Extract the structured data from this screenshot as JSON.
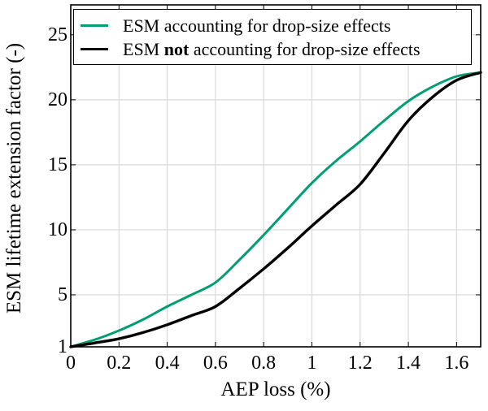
{
  "chart_data": {
    "type": "line",
    "title": "",
    "xlabel": "AEP loss (%)",
    "ylabel": "ESM lifetime extension factor (-)",
    "xlim": [
      0,
      1.7
    ],
    "ylim": [
      1,
      27.3
    ],
    "x_tick_labels": [
      "0",
      "0.2",
      "0.4",
      "0.6",
      "0.8",
      "1",
      "1.2",
      "1.4",
      "1.6"
    ],
    "x_tick_values": [
      0,
      0.2,
      0.4,
      0.6,
      0.8,
      1,
      1.2,
      1.4,
      1.6
    ],
    "y_tick_labels": [
      "1",
      "5",
      "10",
      "15",
      "20",
      "25"
    ],
    "y_tick_values": [
      1,
      5,
      10,
      15,
      20,
      25
    ],
    "grid": "major",
    "legend_position": "top-inside",
    "x": [
      0,
      0.1,
      0.2,
      0.3,
      0.4,
      0.5,
      0.6,
      0.7,
      0.8,
      0.9,
      1,
      1.1,
      1.2,
      1.3,
      1.4,
      1.5,
      1.6,
      1.7
    ],
    "series": [
      {
        "name": "ESM accounting for drop-size effects",
        "color": "#009e73",
        "values": [
          1,
          1.55,
          2.25,
          3.1,
          4.1,
          5,
          5.95,
          7.7,
          9.6,
          11.6,
          13.6,
          15.3,
          16.8,
          18.4,
          19.9,
          21,
          21.8,
          22.1
        ]
      },
      {
        "name": "ESM not accounting for drop-size effects",
        "color": "#000000",
        "values": [
          1,
          1.3,
          1.62,
          2.1,
          2.7,
          3.4,
          4.1,
          5.5,
          7,
          8.6,
          10.3,
          11.9,
          13.5,
          15.9,
          18.4,
          20.2,
          21.5,
          22.1
        ]
      }
    ]
  },
  "legend": {
    "items": [
      {
        "pre": "ESM accounting for drop-size effects",
        "bold": "",
        "post": ""
      },
      {
        "pre": "ESM ",
        "bold": "not",
        "post": " accounting for drop-size effects"
      }
    ]
  },
  "colors": {
    "grid": "#d9d9d9",
    "axis": "#000000",
    "background": "#ffffff"
  }
}
